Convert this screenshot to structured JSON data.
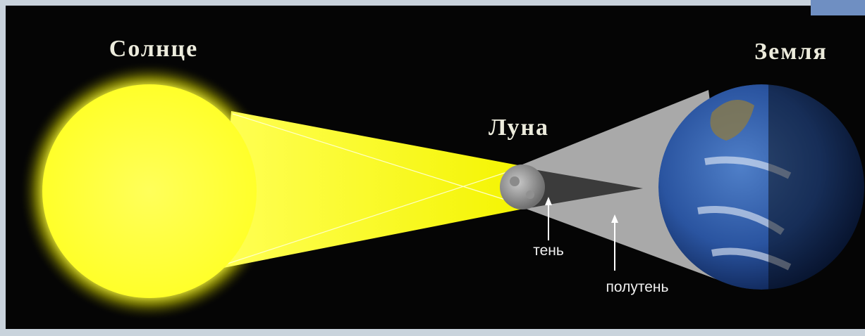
{
  "labels": {
    "sun": "Солнце",
    "earth": "Земля",
    "moon": "Луна",
    "umbra": "тень",
    "penumbra": "полутень"
  }
}
